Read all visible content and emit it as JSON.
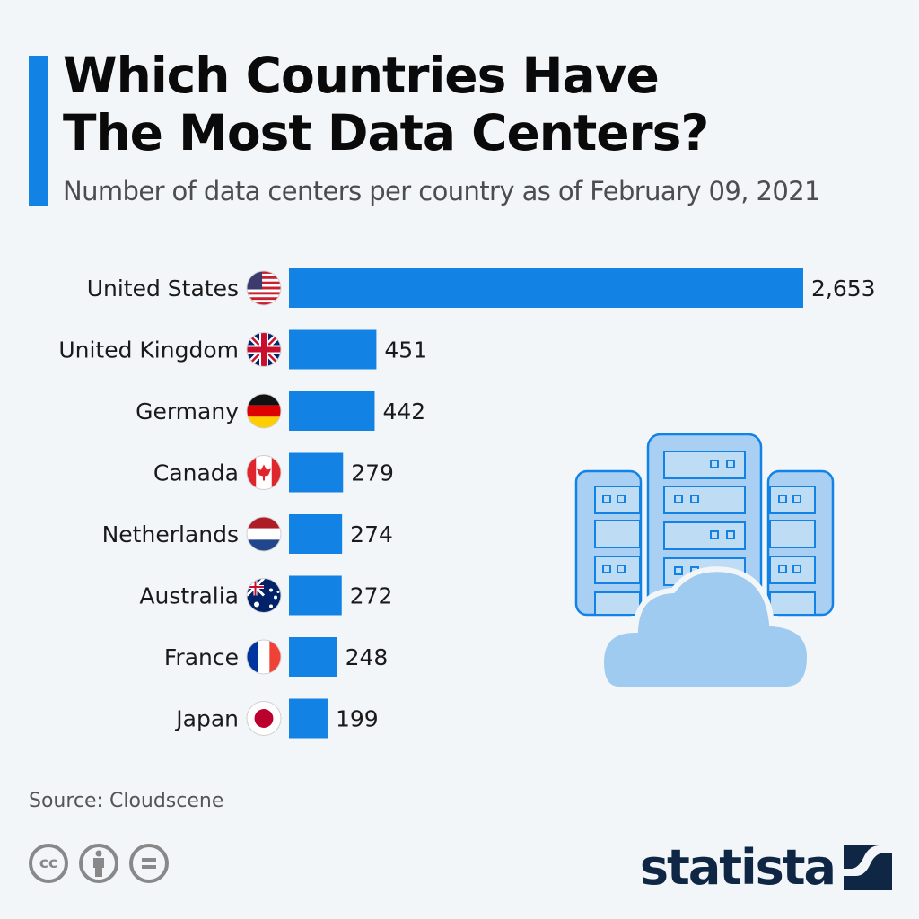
{
  "header": {
    "title_line1": "Which Countries Have",
    "title_line2": "The Most Data Centers?",
    "subtitle": "Number of data centers per country as of February 09, 2021"
  },
  "footer": {
    "source": "Source: Cloudscene",
    "brand": "statista",
    "license_icons": [
      "cc-icon",
      "attribution-icon",
      "no-derivatives-icon"
    ]
  },
  "colors": {
    "accent": "#1282e5",
    "bar": "#1282e5",
    "brand": "#0f2744"
  },
  "chart_data": {
    "type": "bar",
    "orientation": "horizontal",
    "title": "Which Countries Have The Most Data Centers?",
    "subtitle": "Number of data centers per country as of February 09, 2021",
    "categories": [
      "United States",
      "United Kingdom",
      "Germany",
      "Canada",
      "Netherlands",
      "Australia",
      "France",
      "Japan"
    ],
    "values": [
      2653,
      451,
      442,
      279,
      274,
      272,
      248,
      199
    ],
    "value_labels": [
      "2,653",
      "451",
      "442",
      "279",
      "274",
      "272",
      "248",
      "199"
    ],
    "flags": [
      "us",
      "gb",
      "de",
      "ca",
      "nl",
      "au",
      "fr",
      "jp"
    ],
    "xlabel": "",
    "ylabel": "",
    "xlim": [
      0,
      2653
    ],
    "grid": false,
    "legend": "none",
    "source": "Cloudscene"
  }
}
